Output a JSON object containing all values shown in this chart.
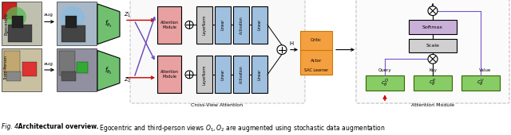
{
  "figsize": [
    6.4,
    1.7
  ],
  "dpi": 100,
  "bg_color": "#ffffff",
  "caption_fig": "Fig. 4.",
  "caption_title": " Architectural overview.",
  "caption_rest": " Egocentric and third-person views $O_1, O_2$ are augmented using stochastic data augmentation",
  "diagram": {
    "egocentric_label": "Egocentric",
    "thirdperson_label": "Third-Person",
    "aug_label": "aug",
    "cross_view_label": "Cross-View Attention",
    "attention_module_label": "Attention Module",
    "sac_label": "SAC Learner",
    "actor_label": "Actor",
    "critic_label": "Critic",
    "softmax_label": "Softmax",
    "scale_label": "Scale",
    "query_label": "Query",
    "key_label": "Key",
    "value_label": "Value",
    "h_label": "H",
    "attention_color": "#e8a0a0",
    "layernorm_color": "#c8c8c8",
    "linear_color": "#a0c0e0",
    "sac_color": "#f5a040",
    "encoder_color": "#70c070",
    "softmax_color": "#c8b0d8",
    "qkv_color": "#88cc66"
  }
}
